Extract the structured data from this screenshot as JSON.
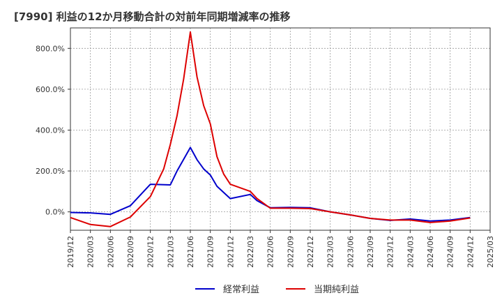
{
  "chart_data": {
    "type": "line",
    "title": "[7990]  利益の12か月移動合計の対前年同期増減率の推移",
    "xlabel": "",
    "ylabel": "",
    "ylim": [
      -90,
      900
    ],
    "yticks": [
      0,
      200,
      400,
      600,
      800
    ],
    "ytick_labels": [
      "0.0%",
      "200.0%",
      "400.0%",
      "600.0%",
      "800.0%"
    ],
    "x_tick_labels": [
      "2019/12",
      "2020/03",
      "2020/06",
      "2020/09",
      "2020/12",
      "2021/03",
      "2021/06",
      "2021/09",
      "2021/12",
      "2022/03",
      "2022/06",
      "2022/09",
      "2022/12",
      "2023/03",
      "2023/06",
      "2023/09",
      "2023/12",
      "2024/03",
      "2024/06",
      "2024/09",
      "2024/12",
      "2025/03"
    ],
    "legend_position": "bottom-center",
    "grid": true,
    "series": [
      {
        "name": "経常利益",
        "color": "#0000cc",
        "points": [
          [
            0,
            -3
          ],
          [
            3,
            -5
          ],
          [
            6,
            -12
          ],
          [
            9,
            30
          ],
          [
            12,
            135
          ],
          [
            15,
            132
          ],
          [
            16,
            200
          ],
          [
            18,
            315
          ],
          [
            19,
            255
          ],
          [
            20,
            210
          ],
          [
            21,
            180
          ],
          [
            22,
            125
          ],
          [
            24,
            65
          ],
          [
            27,
            85
          ],
          [
            28,
            55
          ],
          [
            30,
            20
          ],
          [
            33,
            22
          ],
          [
            36,
            20
          ],
          [
            39,
            0
          ],
          [
            42,
            -15
          ],
          [
            45,
            -32
          ],
          [
            48,
            -42
          ],
          [
            51,
            -35
          ],
          [
            54,
            -45
          ],
          [
            57,
            -40
          ],
          [
            60,
            -28
          ]
        ]
      },
      {
        "name": "当期純利益",
        "color": "#dd0000",
        "points": [
          [
            0,
            -28
          ],
          [
            3,
            -62
          ],
          [
            6,
            -72
          ],
          [
            9,
            -25
          ],
          [
            12,
            75
          ],
          [
            14,
            210
          ],
          [
            15,
            330
          ],
          [
            16,
            470
          ],
          [
            17,
            650
          ],
          [
            18,
            880
          ],
          [
            19,
            660
          ],
          [
            20,
            520
          ],
          [
            21,
            430
          ],
          [
            22,
            270
          ],
          [
            23,
            185
          ],
          [
            24,
            135
          ],
          [
            27,
            100
          ],
          [
            28,
            65
          ],
          [
            30,
            18
          ],
          [
            33,
            18
          ],
          [
            36,
            16
          ],
          [
            39,
            0
          ],
          [
            42,
            -15
          ],
          [
            45,
            -32
          ],
          [
            48,
            -40
          ],
          [
            51,
            -40
          ],
          [
            54,
            -52
          ],
          [
            57,
            -45
          ],
          [
            60,
            -30
          ]
        ]
      }
    ]
  }
}
